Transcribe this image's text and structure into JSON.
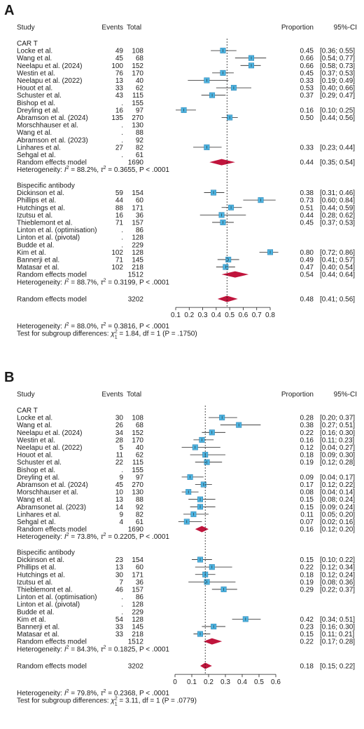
{
  "chart_data": [
    {
      "panel": "A",
      "type": "forest",
      "headers": {
        "study": "Study",
        "events": "Events",
        "total": "Total",
        "proportion": "Proportion",
        "ci": "95%-CI"
      },
      "xlim": [
        0.1,
        0.8
      ],
      "ticks": [
        0.1,
        0.2,
        0.3,
        0.4,
        0.5,
        0.6,
        0.7,
        0.8
      ],
      "reference_line": 0.48,
      "groups": [
        {
          "name": "CAR T",
          "studies": [
            {
              "name": "Locke et al.",
              "events": "49",
              "total": "108",
              "est": 0.45,
              "lo": 0.36,
              "hi": 0.55,
              "prop": "0.45",
              "ci": "[0.36; 0.55]"
            },
            {
              "name": "Wang et al.",
              "events": "45",
              "total": "68",
              "est": 0.66,
              "lo": 0.54,
              "hi": 0.77,
              "prop": "0.66",
              "ci": "[0.54; 0.77]"
            },
            {
              "name": "Neelapu et al. (2024)",
              "events": "100",
              "total": "152",
              "est": 0.66,
              "lo": 0.58,
              "hi": 0.73,
              "prop": "0.66",
              "ci": "[0.58; 0.73]"
            },
            {
              "name": "Westin et al.",
              "events": "76",
              "total": "170",
              "est": 0.45,
              "lo": 0.37,
              "hi": 0.53,
              "prop": "0.45",
              "ci": "[0.37; 0.53]"
            },
            {
              "name": "Neelapu et al. (2022)",
              "events": "13",
              "total": "40",
              "est": 0.33,
              "lo": 0.19,
              "hi": 0.49,
              "prop": "0.33",
              "ci": "[0.19; 0.49]"
            },
            {
              "name": "Houot et al.",
              "events": "33",
              "total": "62",
              "est": 0.53,
              "lo": 0.4,
              "hi": 0.66,
              "prop": "0.53",
              "ci": "[0.40; 0.66]"
            },
            {
              "name": "Schuster et al.",
              "events": "43",
              "total": "115",
              "est": 0.37,
              "lo": 0.29,
              "hi": 0.47,
              "prop": "0.37",
              "ci": "[0.29; 0.47]"
            },
            {
              "name": "Bishop et al.",
              "events": ".",
              "total": "155",
              "est": null,
              "lo": null,
              "hi": null,
              "prop": "",
              "ci": ""
            },
            {
              "name": "Dreyling et al.",
              "events": "16",
              "total": "97",
              "est": 0.16,
              "lo": 0.1,
              "hi": 0.25,
              "prop": "0.16",
              "ci": "[0.10; 0.25]"
            },
            {
              "name": "Abramson et al. (2024)",
              "events": "135",
              "total": "270",
              "est": 0.5,
              "lo": 0.44,
              "hi": 0.56,
              "prop": "0.50",
              "ci": "[0.44; 0.56]"
            },
            {
              "name": "Morschhauser et al.",
              "events": ".",
              "total": "130",
              "est": null,
              "lo": null,
              "hi": null,
              "prop": "",
              "ci": ""
            },
            {
              "name": "Wang et al.",
              "events": ".",
              "total": "88",
              "est": null,
              "lo": null,
              "hi": null,
              "prop": "",
              "ci": ""
            },
            {
              "name": "Abramson et al. (2023)",
              "events": ".",
              "total": "92",
              "est": null,
              "lo": null,
              "hi": null,
              "prop": "",
              "ci": ""
            },
            {
              "name": "Linhares et al.",
              "events": "27",
              "total": "82",
              "est": 0.33,
              "lo": 0.23,
              "hi": 0.44,
              "prop": "0.33",
              "ci": "[0.23; 0.44]"
            },
            {
              "name": "Sehgal et al.",
              "events": ".",
              "total": "61",
              "est": null,
              "lo": null,
              "hi": null,
              "prop": "",
              "ci": ""
            }
          ],
          "pooled": {
            "name": "Random effects model",
            "total": "1690",
            "est": 0.44,
            "lo": 0.35,
            "hi": 0.54,
            "prop": "0.44",
            "ci": "[0.35; 0.54]"
          },
          "heterogeneity": {
            "prefix": "Heterogeneity: ",
            "i2": "88.2%",
            "tau2": "0.3655",
            "p": "P < .0001"
          }
        },
        {
          "name": "Bispecific antibody",
          "studies": [
            {
              "name": "Dickinson et al.",
              "events": "59",
              "total": "154",
              "est": 0.38,
              "lo": 0.31,
              "hi": 0.46,
              "prop": "0.38",
              "ci": "[0.31; 0.46]"
            },
            {
              "name": "Phillips et al.",
              "events": "44",
              "total": "60",
              "est": 0.73,
              "lo": 0.6,
              "hi": 0.84,
              "prop": "0.73",
              "ci": "[0.60; 0.84]"
            },
            {
              "name": "Hutchings et al.",
              "events": "88",
              "total": "171",
              "est": 0.51,
              "lo": 0.44,
              "hi": 0.59,
              "prop": "0.51",
              "ci": "[0.44; 0.59]"
            },
            {
              "name": "Izutsu et al.",
              "events": "16",
              "total": "36",
              "est": 0.44,
              "lo": 0.28,
              "hi": 0.62,
              "prop": "0.44",
              "ci": "[0.28; 0.62]"
            },
            {
              "name": "Thieblemont et al.",
              "events": "71",
              "total": "157",
              "est": 0.45,
              "lo": 0.37,
              "hi": 0.53,
              "prop": "0.45",
              "ci": "[0.37; 0.53]"
            },
            {
              "name": "Linton et al. (optimisation)",
              "events": ".",
              "total": "86",
              "est": null,
              "lo": null,
              "hi": null,
              "prop": "",
              "ci": ""
            },
            {
              "name": "Linton et al. (pivotal)",
              "events": ".",
              "total": "128",
              "est": null,
              "lo": null,
              "hi": null,
              "prop": "",
              "ci": ""
            },
            {
              "name": "Budde et al.",
              "events": ".",
              "total": "229",
              "est": null,
              "lo": null,
              "hi": null,
              "prop": "",
              "ci": ""
            },
            {
              "name": "Kim et al.",
              "events": "102",
              "total": "128",
              "est": 0.8,
              "lo": 0.72,
              "hi": 0.86,
              "prop": "0.80",
              "ci": "[0.72; 0.86]"
            },
            {
              "name": "Bannerji et al.",
              "events": "71",
              "total": "145",
              "est": 0.49,
              "lo": 0.41,
              "hi": 0.57,
              "prop": "0.49",
              "ci": "[0.41; 0.57]"
            },
            {
              "name": "Matasar et al.",
              "events": "102",
              "total": "218",
              "est": 0.47,
              "lo": 0.4,
              "hi": 0.54,
              "prop": "0.47",
              "ci": "[0.40; 0.54]"
            }
          ],
          "pooled": {
            "name": "Random effects model",
            "total": "1512",
            "est": 0.54,
            "lo": 0.44,
            "hi": 0.64,
            "prop": "0.54",
            "ci": "[0.44; 0.64]"
          },
          "heterogeneity": {
            "prefix": "Heterogeneity: ",
            "i2": "88.7%",
            "tau2": "0.3199",
            "p": "P < .0001"
          }
        }
      ],
      "overall": {
        "name": "Random effects model",
        "total": "3202",
        "est": 0.48,
        "lo": 0.41,
        "hi": 0.56,
        "prop": "0.48",
        "ci": "[0.41; 0.56]"
      },
      "overall_heterogeneity": {
        "prefix": "Heterogeneity: ",
        "i2": "88.0%",
        "tau2": "0.3816",
        "p": "P < .0001"
      },
      "subgroup_test": {
        "prefix": "Test for subgroup differences: ",
        "chi2": "1.84",
        "df": "df = 1",
        "p": "(P = .1750)"
      }
    },
    {
      "panel": "B",
      "type": "forest",
      "headers": {
        "study": "Study",
        "events": "Events",
        "total": "Total",
        "proportion": "Proportion",
        "ci": "95%-CI"
      },
      "xlim": [
        0,
        0.6
      ],
      "ticks": [
        0,
        0.1,
        0.2,
        0.3,
        0.4,
        0.5,
        0.6
      ],
      "reference_line": 0.18,
      "groups": [
        {
          "name": "CAR T",
          "studies": [
            {
              "name": "Locke et al.",
              "events": "30",
              "total": "108",
              "est": 0.28,
              "lo": 0.2,
              "hi": 0.37,
              "prop": "0.28",
              "ci": "[0.20; 0.37]"
            },
            {
              "name": "Wang et al.",
              "events": "26",
              "total": "68",
              "est": 0.38,
              "lo": 0.27,
              "hi": 0.51,
              "prop": "0.38",
              "ci": "[0.27; 0.51]"
            },
            {
              "name": "Neelapu et al. (2024)",
              "events": "34",
              "total": "152",
              "est": 0.22,
              "lo": 0.16,
              "hi": 0.3,
              "prop": "0.22",
              "ci": "[0.16; 0.30]"
            },
            {
              "name": "Westin et al.",
              "events": "28",
              "total": "170",
              "est": 0.16,
              "lo": 0.11,
              "hi": 0.23,
              "prop": "0.16",
              "ci": "[0.11; 0.23]"
            },
            {
              "name": "Neelapu et al. (2022)",
              "events": "5",
              "total": "40",
              "est": 0.12,
              "lo": 0.04,
              "hi": 0.27,
              "prop": "0.12",
              "ci": "[0.04; 0.27]"
            },
            {
              "name": "Houot et al.",
              "events": "11",
              "total": "62",
              "est": 0.18,
              "lo": 0.09,
              "hi": 0.3,
              "prop": "0.18",
              "ci": "[0.09; 0.30]"
            },
            {
              "name": "Schuster et al.",
              "events": "22",
              "total": "115",
              "est": 0.19,
              "lo": 0.12,
              "hi": 0.28,
              "prop": "0.19",
              "ci": "[0.12; 0.28]"
            },
            {
              "name": "Bishop et al.",
              "events": ".",
              "total": "155",
              "est": null,
              "lo": null,
              "hi": null,
              "prop": "",
              "ci": ""
            },
            {
              "name": "Dreyling et al.",
              "events": "9",
              "total": "97",
              "est": 0.09,
              "lo": 0.04,
              "hi": 0.17,
              "prop": "0.09",
              "ci": "[0.04; 0.17]"
            },
            {
              "name": "Abramson et al. (2024)",
              "events": "45",
              "total": "270",
              "est": 0.17,
              "lo": 0.12,
              "hi": 0.22,
              "prop": "0.17",
              "ci": "[0.12; 0.22]"
            },
            {
              "name": "Morschhauser et al.",
              "events": "10",
              "total": "130",
              "est": 0.08,
              "lo": 0.04,
              "hi": 0.14,
              "prop": "0.08",
              "ci": "[0.04; 0.14]"
            },
            {
              "name": "Wang et al.",
              "events": "13",
              "total": "88",
              "est": 0.15,
              "lo": 0.08,
              "hi": 0.24,
              "prop": "0.15",
              "ci": "[0.08; 0.24]"
            },
            {
              "name": "Abramsonet al. (2023)",
              "events": "14",
              "total": "92",
              "est": 0.15,
              "lo": 0.09,
              "hi": 0.24,
              "prop": "0.15",
              "ci": "[0.09; 0.24]"
            },
            {
              "name": "Linhares et al.",
              "events": "9",
              "total": "82",
              "est": 0.11,
              "lo": 0.05,
              "hi": 0.2,
              "prop": "0.11",
              "ci": "[0.05; 0.20]"
            },
            {
              "name": "Sehgal et al.",
              "events": "4",
              "total": "61",
              "est": 0.07,
              "lo": 0.02,
              "hi": 0.16,
              "prop": "0.07",
              "ci": "[0.02; 0.16]"
            }
          ],
          "pooled": {
            "name": "Random effects model",
            "total": "1690",
            "est": 0.16,
            "lo": 0.12,
            "hi": 0.2,
            "prop": "0.16",
            "ci": "[0.12; 0.20]"
          },
          "heterogeneity": {
            "prefix": "Heterogeneity: ",
            "i2": "73.8%",
            "tau2": "0.2205",
            "p": "P < .0001"
          }
        },
        {
          "name": "Bispecific antibody",
          "studies": [
            {
              "name": "Dickinson et al.",
              "events": "23",
              "total": "154",
              "est": 0.15,
              "lo": 0.1,
              "hi": 0.22,
              "prop": "0.15",
              "ci": "[0.10; 0.22]"
            },
            {
              "name": "Phillips et al.",
              "events": "13",
              "total": "60",
              "est": 0.22,
              "lo": 0.12,
              "hi": 0.34,
              "prop": "0.22",
              "ci": "[0.12; 0.34]"
            },
            {
              "name": "Hutchings et al.",
              "events": "30",
              "total": "171",
              "est": 0.18,
              "lo": 0.12,
              "hi": 0.24,
              "prop": "0.18",
              "ci": "[0.12; 0.24]"
            },
            {
              "name": "Izutsu et al.",
              "events": "7",
              "total": "36",
              "est": 0.19,
              "lo": 0.08,
              "hi": 0.36,
              "prop": "0.19",
              "ci": "[0.08; 0.36]"
            },
            {
              "name": "Thieblemont et al.",
              "events": "46",
              "total": "157",
              "est": 0.29,
              "lo": 0.22,
              "hi": 0.37,
              "prop": "0.29",
              "ci": "[0.22; 0.37]"
            },
            {
              "name": "Linton et al. (optimisation)",
              "events": ".",
              "total": "86",
              "est": null,
              "lo": null,
              "hi": null,
              "prop": "",
              "ci": ""
            },
            {
              "name": "Linton et al. (pivotal)",
              "events": ".",
              "total": "128",
              "est": null,
              "lo": null,
              "hi": null,
              "prop": "",
              "ci": ""
            },
            {
              "name": "Budde et al.",
              "events": ".",
              "total": "229",
              "est": null,
              "lo": null,
              "hi": null,
              "prop": "",
              "ci": ""
            },
            {
              "name": "Kim et al.",
              "events": "54",
              "total": "128",
              "est": 0.42,
              "lo": 0.34,
              "hi": 0.51,
              "prop": "0.42",
              "ci": "[0.34; 0.51]"
            },
            {
              "name": "Bannerji et al.",
              "events": "33",
              "total": "145",
              "est": 0.23,
              "lo": 0.16,
              "hi": 0.3,
              "prop": "0.23",
              "ci": "[0.16; 0.30]"
            },
            {
              "name": "Matasar et al.",
              "events": "33",
              "total": "218",
              "est": 0.15,
              "lo": 0.11,
              "hi": 0.21,
              "prop": "0.15",
              "ci": "[0.11; 0.21]"
            }
          ],
          "pooled": {
            "name": "Random effects model",
            "total": "1512",
            "est": 0.22,
            "lo": 0.17,
            "hi": 0.28,
            "prop": "0.22",
            "ci": "[0.17; 0.28]"
          },
          "heterogeneity": {
            "prefix": "Heterogeneity: ",
            "i2": "84.3%",
            "tau2": "0.1825",
            "p": "P < .0001"
          }
        }
      ],
      "overall": {
        "name": "Random effects model",
        "total": "3202",
        "est": 0.18,
        "lo": 0.15,
        "hi": 0.22,
        "prop": "0.18",
        "ci": "[0.15; 0.22]"
      },
      "overall_heterogeneity": {
        "prefix": "Heterogeneity: ",
        "i2": "79.8%",
        "tau2": "0.2368",
        "p": "P < .0001"
      },
      "subgroup_test": {
        "prefix": "Test for subgroup differences: ",
        "chi2": "3.11",
        "df": "df = 1",
        "p": "(P = .0779)"
      }
    }
  ],
  "colors": {
    "box": "#4db3e0",
    "box_stroke": "#2a7fae",
    "diamond": "#c0143c",
    "text": "#1a1a1a",
    "line": "#222222"
  }
}
